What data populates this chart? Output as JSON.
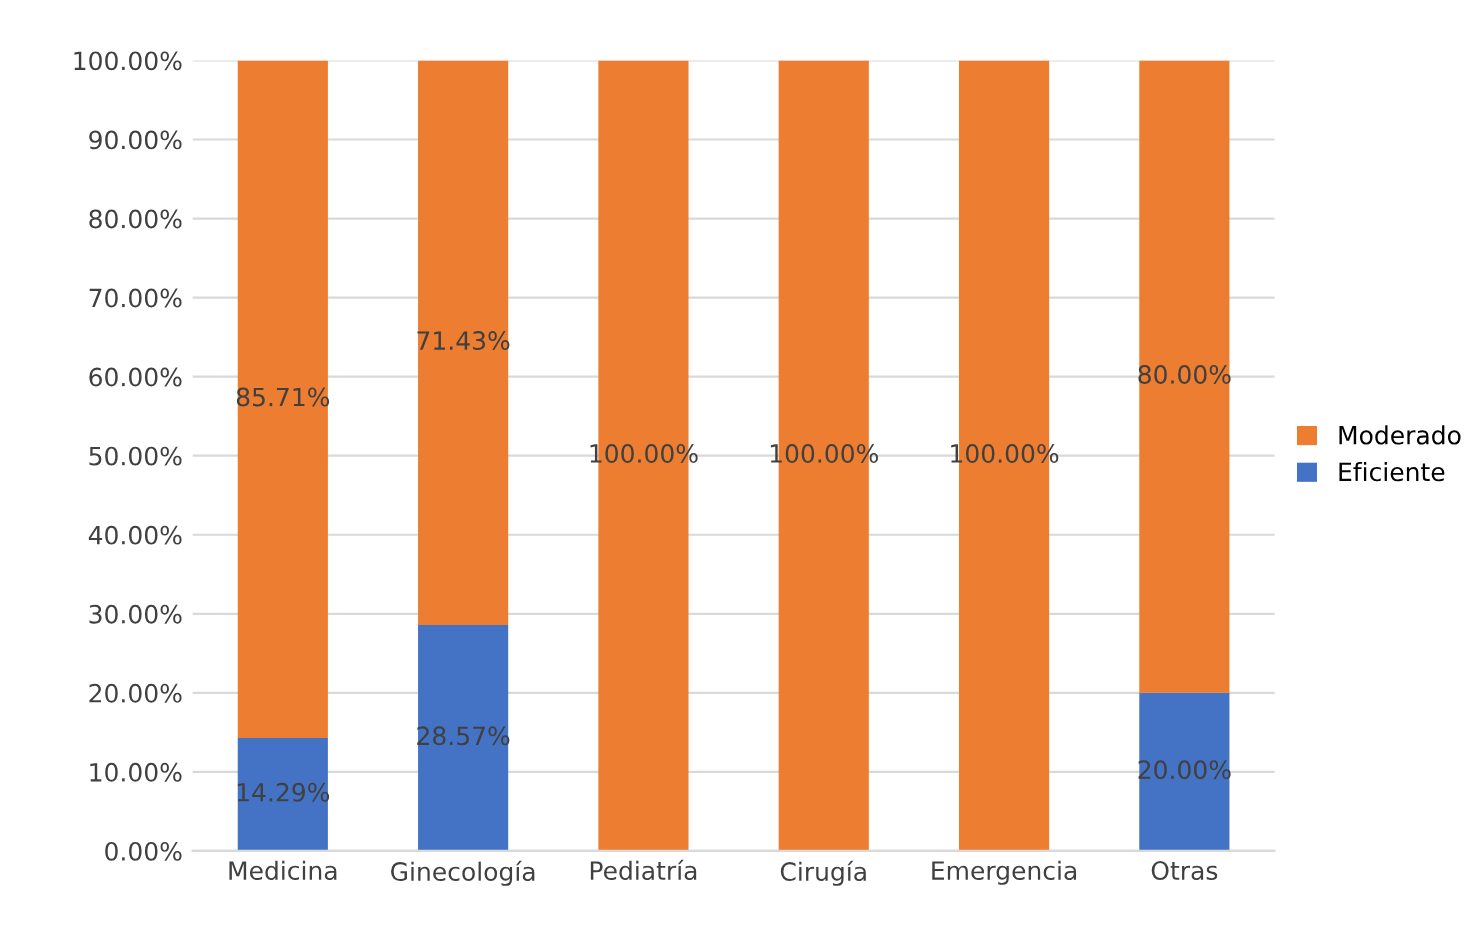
{
  "chart_data": {
    "type": "bar",
    "stacked": true,
    "categories": [
      "Medicina",
      "Ginecología",
      "Pediatría",
      "Cirugía",
      "Emergencia",
      "Otras"
    ],
    "series": [
      {
        "name": "Eficiente",
        "color": "#4472c4",
        "values": [
          14.29,
          28.57,
          0,
          0,
          0,
          20.0
        ],
        "value_labels": [
          "14.29%",
          "28.57%",
          null,
          null,
          null,
          "20.00%"
        ]
      },
      {
        "name": "Moderado",
        "color": "#ed7d31",
        "values": [
          85.71,
          71.43,
          100,
          100,
          100,
          80.0
        ],
        "value_labels": [
          "85.71%",
          "71.43%",
          "100.00%",
          "100.00%",
          "100.00%",
          "80.00%"
        ]
      }
    ],
    "ylim": [
      0,
      100
    ],
    "yticks": [
      {
        "value": 0,
        "label": "0.00%"
      },
      {
        "value": 10,
        "label": "10.00%"
      },
      {
        "value": 20,
        "label": "20.00%"
      },
      {
        "value": 30,
        "label": "30.00%"
      },
      {
        "value": 40,
        "label": "40.00%"
      },
      {
        "value": 50,
        "label": "50.00%"
      },
      {
        "value": 60,
        "label": "60.00%"
      },
      {
        "value": 70,
        "label": "70.00%"
      },
      {
        "value": 80,
        "label": "80.00%"
      },
      {
        "value": 90,
        "label": "90.00%"
      },
      {
        "value": 100,
        "label": "100.00%"
      }
    ],
    "grid": "y",
    "legend": "right"
  }
}
